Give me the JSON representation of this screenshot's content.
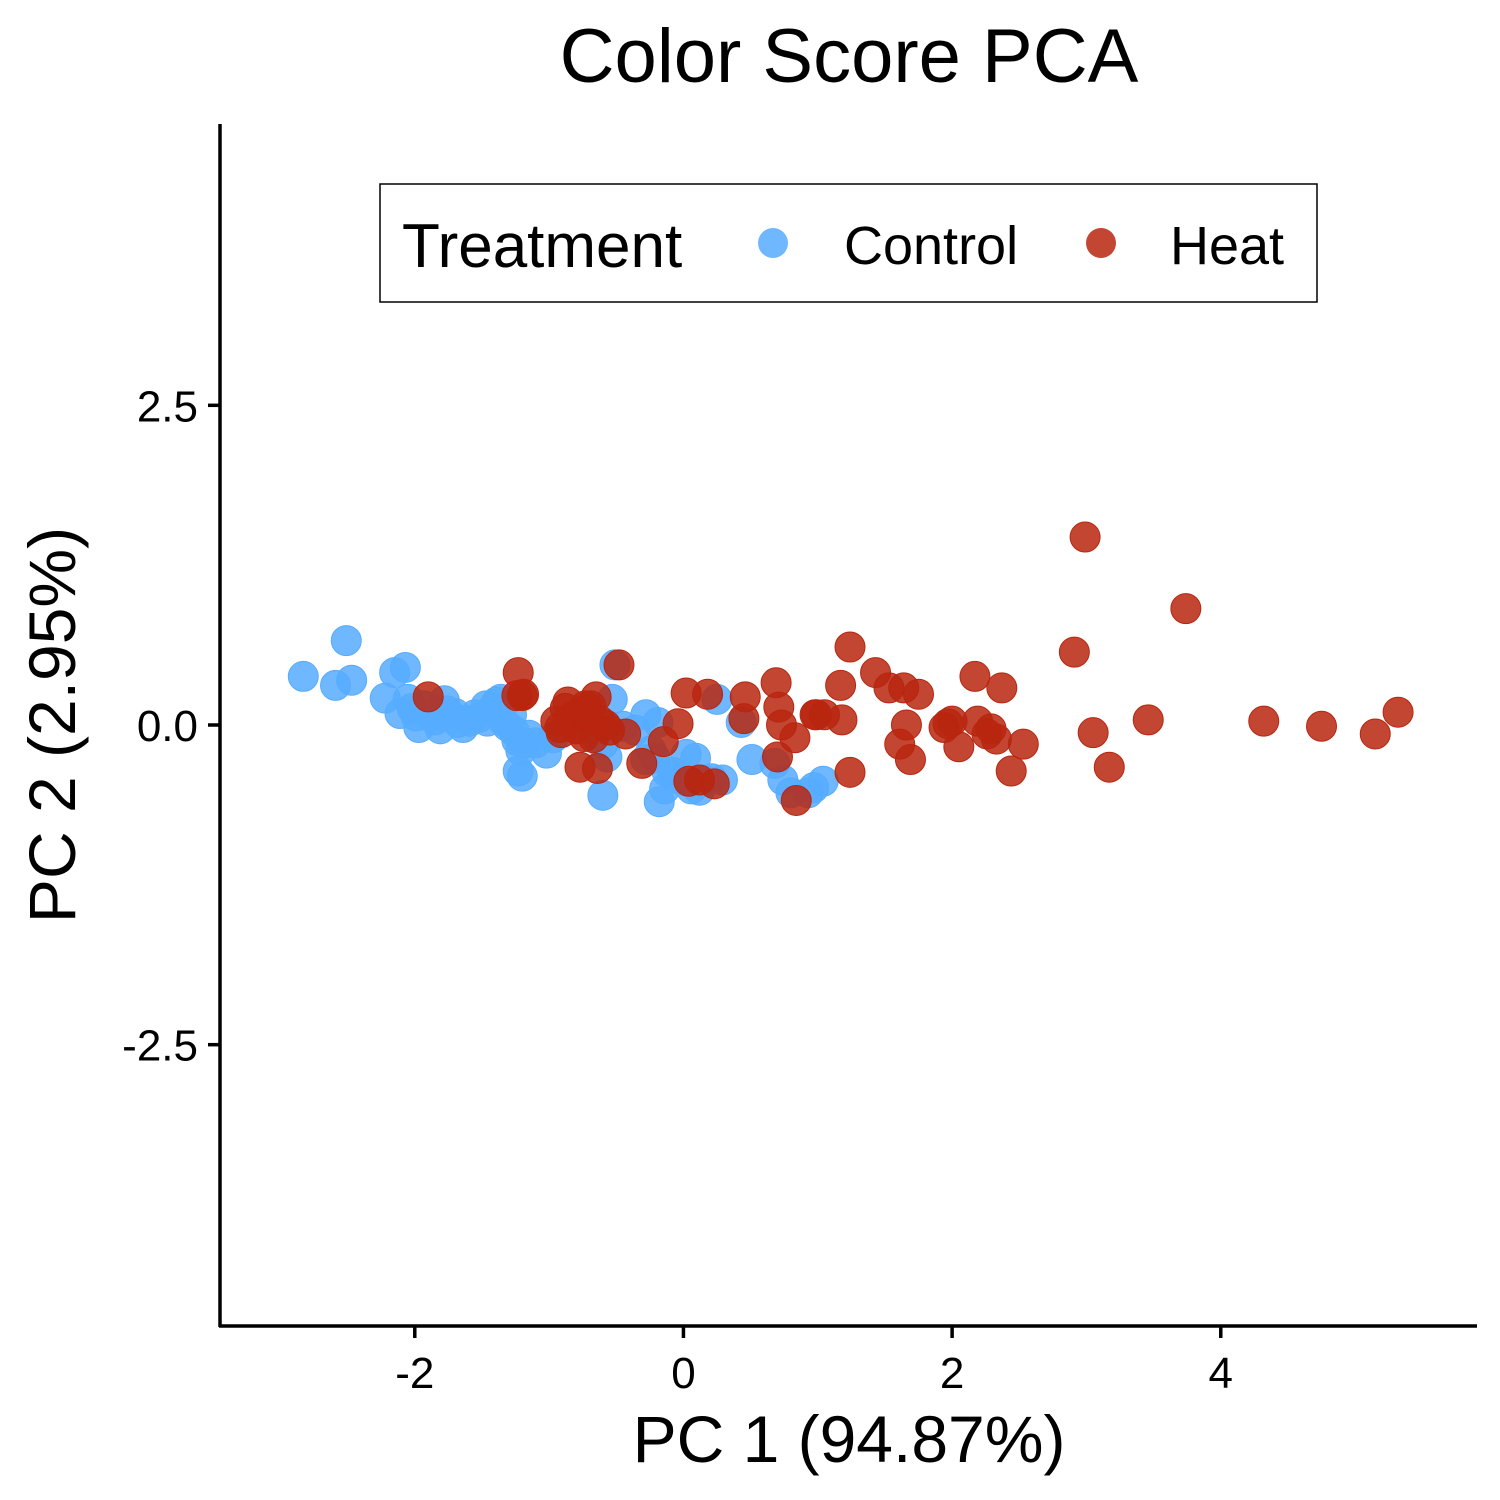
{
  "chart_data": {
    "type": "scatter",
    "title": "Color Score PCA",
    "xlabel": "PC 1 (94.87%)",
    "ylabel": "PC 2 (2.95%)",
    "xlim": [
      -3.45,
      5.9
    ],
    "ylim": [
      -4.7,
      4.7
    ],
    "xticks": [
      -2,
      0,
      2,
      4
    ],
    "xtick_labels": [
      "-2",
      "0",
      "2",
      "4"
    ],
    "yticks": [
      -2.5,
      0,
      2.5
    ],
    "ytick_labels": [
      "-2.5",
      "0.0",
      "2.5"
    ],
    "grid": false,
    "legend": {
      "title": "Treatment",
      "placement": "top-center"
    },
    "series": [
      {
        "name": "Control",
        "color": "#56ACFF",
        "points": [
          [
            -2.83,
            0.38
          ],
          [
            -2.59,
            0.31
          ],
          [
            -2.51,
            0.66
          ],
          [
            -2.47,
            0.35
          ],
          [
            -2.22,
            0.21
          ],
          [
            -2.15,
            0.41
          ],
          [
            -2.07,
            0.45
          ],
          [
            -2.11,
            0.09
          ],
          [
            -2.02,
            0.13
          ],
          [
            -1.99,
            0.07
          ],
          [
            -1.97,
            -0.02
          ],
          [
            -1.93,
            0.15
          ],
          [
            -1.85,
            0.04
          ],
          [
            -1.81,
            -0.03
          ],
          [
            -1.78,
            0.19
          ],
          [
            -1.76,
            0.11
          ],
          [
            -1.72,
            0.06
          ],
          [
            -1.68,
            0.02
          ],
          [
            -1.64,
            -0.02
          ],
          [
            -1.59,
            0.03
          ],
          [
            -1.55,
            0.08
          ],
          [
            -1.52,
            0.06
          ],
          [
            -1.46,
            0.03
          ],
          [
            -1.42,
            0.13
          ],
          [
            -1.39,
            0.18
          ],
          [
            -1.36,
            0.2
          ],
          [
            -1.34,
            0.03
          ],
          [
            -1.31,
            -0.01
          ],
          [
            -1.28,
            0.08
          ],
          [
            -1.26,
            -0.05
          ],
          [
            -1.24,
            -0.12
          ],
          [
            -1.21,
            -0.2
          ],
          [
            -1.18,
            -0.14
          ],
          [
            -1.15,
            -0.08
          ],
          [
            -1.23,
            -0.36
          ],
          [
            -1.2,
            -0.4
          ],
          [
            -1.1,
            -0.14
          ],
          [
            -1.02,
            -0.22
          ],
          [
            -0.97,
            -0.1
          ],
          [
            -0.72,
            0.05
          ],
          [
            -0.68,
            -0.02
          ],
          [
            -0.63,
            -0.06
          ],
          [
            -0.6,
            -0.15
          ],
          [
            -0.57,
            -0.25
          ],
          [
            -0.53,
            0.2
          ],
          [
            -0.51,
            0.47
          ],
          [
            -0.6,
            -0.55
          ],
          [
            -0.28,
            0.08
          ],
          [
            -0.24,
            -0.2
          ],
          [
            -0.21,
            -0.26
          ],
          [
            -0.19,
            0.02
          ],
          [
            -0.12,
            -0.37
          ],
          [
            -0.05,
            -0.42
          ],
          [
            0.02,
            -0.44
          ],
          [
            0.06,
            -0.5
          ],
          [
            0.09,
            -0.26
          ],
          [
            0.12,
            -0.51
          ],
          [
            0.16,
            -0.43
          ],
          [
            0.21,
            -0.42
          ],
          [
            0.29,
            -0.43
          ],
          [
            0.25,
            0.2
          ],
          [
            0.43,
            0.02
          ],
          [
            0.51,
            -0.27
          ],
          [
            0.68,
            -0.3
          ],
          [
            0.74,
            -0.43
          ],
          [
            0.8,
            -0.53
          ],
          [
            0.93,
            -0.53
          ],
          [
            0.97,
            -0.49
          ],
          [
            1.04,
            -0.44
          ],
          [
            -0.45,
            -0.01
          ],
          [
            -1.7,
            0.09
          ],
          [
            -2.05,
            0.2
          ],
          [
            -0.36,
            -0.04
          ],
          [
            -0.14,
            -0.5
          ],
          [
            0.02,
            -0.23
          ],
          [
            -0.8,
            -0.03
          ],
          [
            -0.08,
            -0.37
          ],
          [
            -0.65,
            -0.08
          ],
          [
            -1.47,
            0.15
          ],
          [
            -1.8,
            0.07
          ],
          [
            -0.28,
            -0.27
          ],
          [
            -0.18,
            -0.6
          ]
        ]
      },
      {
        "name": "Heat",
        "color": "#B8260F",
        "points": [
          [
            -1.9,
            0.22
          ],
          [
            -1.2,
            0.23
          ],
          [
            -1.23,
            0.41
          ],
          [
            -1.19,
            0.24
          ],
          [
            -0.95,
            0.03
          ],
          [
            -0.91,
            -0.06
          ],
          [
            -0.88,
            0.13
          ],
          [
            -0.86,
            0.18
          ],
          [
            -0.83,
            0.06
          ],
          [
            -0.8,
            -0.03
          ],
          [
            -0.77,
            0.1
          ],
          [
            -0.74,
            -0.09
          ],
          [
            -0.71,
            0.07
          ],
          [
            -0.67,
            -0.1
          ],
          [
            -0.65,
            0.22
          ],
          [
            -0.62,
            0.03
          ],
          [
            -0.77,
            -0.33
          ],
          [
            -0.64,
            -0.34
          ],
          [
            -0.48,
            0.47
          ],
          [
            -0.43,
            -0.07
          ],
          [
            -0.31,
            -0.3
          ],
          [
            -0.15,
            -0.13
          ],
          [
            -0.04,
            0.01
          ],
          [
            0.02,
            0.25
          ],
          [
            0.04,
            -0.44
          ],
          [
            0.12,
            -0.43
          ],
          [
            0.18,
            0.24
          ],
          [
            0.23,
            -0.46
          ],
          [
            0.45,
            0.05
          ],
          [
            0.46,
            0.22
          ],
          [
            0.69,
            0.33
          ],
          [
            0.71,
            0.14
          ],
          [
            0.73,
            0.0
          ],
          [
            0.7,
            -0.25
          ],
          [
            0.83,
            -0.1
          ],
          [
            0.84,
            -0.59
          ],
          [
            0.99,
            0.08
          ],
          [
            1.05,
            0.08
          ],
          [
            1.17,
            0.31
          ],
          [
            1.18,
            0.04
          ],
          [
            1.24,
            0.61
          ],
          [
            1.24,
            -0.37
          ],
          [
            1.43,
            0.41
          ],
          [
            1.53,
            0.29
          ],
          [
            1.61,
            -0.15
          ],
          [
            1.64,
            0.29
          ],
          [
            1.66,
            0.0
          ],
          [
            1.69,
            -0.27
          ],
          [
            1.75,
            0.24
          ],
          [
            1.94,
            -0.02
          ],
          [
            2.0,
            0.03
          ],
          [
            2.05,
            -0.17
          ],
          [
            2.17,
            0.38
          ],
          [
            2.19,
            0.03
          ],
          [
            2.26,
            -0.07
          ],
          [
            2.33,
            -0.11
          ],
          [
            2.37,
            0.29
          ],
          [
            2.44,
            -0.36
          ],
          [
            2.53,
            -0.15
          ],
          [
            2.91,
            0.57
          ],
          [
            2.99,
            1.47
          ],
          [
            3.05,
            -0.06
          ],
          [
            3.17,
            -0.33
          ],
          [
            3.46,
            0.04
          ],
          [
            3.74,
            0.91
          ],
          [
            4.32,
            0.03
          ],
          [
            4.75,
            -0.01
          ],
          [
            5.15,
            -0.07
          ],
          [
            5.32,
            0.1
          ],
          [
            -0.58,
            0.0
          ],
          [
            -0.73,
            0.15
          ],
          [
            -0.55,
            -0.04
          ],
          [
            2.29,
            -0.03
          ],
          [
            1.97,
            0.01
          ],
          [
            -1.24,
            0.23
          ],
          [
            0.98,
            0.08
          ],
          [
            -0.92,
            -0.02
          ],
          [
            -0.69,
            0.15
          ]
        ]
      }
    ]
  }
}
